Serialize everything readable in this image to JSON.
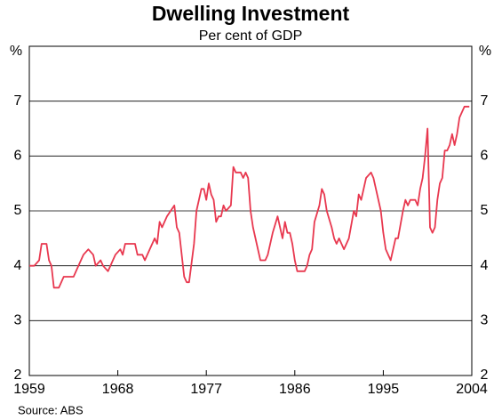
{
  "chart_data": {
    "type": "line",
    "title": "Dwelling Investment",
    "subtitle": "Per cent of GDP",
    "y_label": "%",
    "y2_label": "%",
    "source": "Source: ABS",
    "xlim": [
      1959,
      2004
    ],
    "xticks": [
      1959,
      1968,
      1977,
      1986,
      1995,
      2004
    ],
    "ylim": [
      2,
      8
    ],
    "yticks": [
      2,
      3,
      4,
      5,
      6,
      7
    ],
    "grid": true,
    "mirror_y_axis": true,
    "x": [
      1959.0,
      1959.5,
      1960.0,
      1960.25,
      1960.75,
      1961.0,
      1961.25,
      1961.5,
      1962.0,
      1962.5,
      1963.5,
      1964.0,
      1964.5,
      1965.0,
      1965.5,
      1965.75,
      1966.25,
      1966.5,
      1967.0,
      1967.5,
      1967.75,
      1968.25,
      1968.5,
      1968.75,
      1969.75,
      1970.0,
      1970.5,
      1970.75,
      1971.25,
      1971.75,
      1972.0,
      1972.25,
      1972.5,
      1973.0,
      1973.75,
      1974.0,
      1974.25,
      1974.75,
      1975.0,
      1975.25,
      1975.75,
      1976.0,
      1976.5,
      1976.75,
      1977.0,
      1977.25,
      1977.5,
      1977.75,
      1978.0,
      1978.25,
      1978.5,
      1978.75,
      1979.0,
      1979.5,
      1979.75,
      1980.0,
      1980.5,
      1980.75,
      1981.0,
      1981.25,
      1981.5,
      1981.75,
      1982.5,
      1983.0,
      1983.25,
      1983.75,
      1984.25,
      1984.5,
      1984.75,
      1985.0,
      1985.25,
      1985.5,
      1985.75,
      1986.0,
      1986.25,
      1987.0,
      1987.25,
      1987.5,
      1987.75,
      1988.0,
      1988.5,
      1988.75,
      1989.0,
      1989.25,
      1989.75,
      1990.0,
      1990.25,
      1990.5,
      1990.75,
      1991.0,
      1991.5,
      1992.0,
      1992.25,
      1992.5,
      1992.75,
      1993.25,
      1993.75,
      1994.0,
      1994.25,
      1994.75,
      1995.0,
      1995.25,
      1995.5,
      1995.75,
      1996.25,
      1996.5,
      1997.0,
      1997.25,
      1997.5,
      1997.75,
      1998.25,
      1998.5,
      1998.75,
      1999.0,
      1999.25,
      1999.5,
      1999.75,
      2000.0,
      2000.25,
      2000.5,
      2000.75,
      2001.0,
      2001.25,
      2001.5,
      2001.75,
      2002.0,
      2002.25,
      2002.5,
      2002.75,
      2003.0,
      2003.25,
      2003.75
    ],
    "series": [
      {
        "name": "Dwelling investment",
        "color": "#e8384f",
        "values": [
          4.0,
          4.0,
          4.1,
          4.4,
          4.4,
          4.1,
          4.0,
          3.6,
          3.6,
          3.8,
          3.8,
          4.0,
          4.2,
          4.3,
          4.2,
          4.0,
          4.1,
          4.0,
          3.9,
          4.1,
          4.2,
          4.3,
          4.2,
          4.4,
          4.4,
          4.2,
          4.2,
          4.1,
          4.3,
          4.5,
          4.4,
          4.8,
          4.7,
          4.9,
          5.1,
          4.7,
          4.6,
          3.8,
          3.7,
          3.7,
          4.4,
          5.0,
          5.4,
          5.4,
          5.2,
          5.5,
          5.3,
          5.2,
          4.8,
          4.9,
          4.9,
          5.1,
          5.0,
          5.1,
          5.8,
          5.7,
          5.7,
          5.6,
          5.7,
          5.6,
          5.0,
          4.7,
          4.1,
          4.1,
          4.2,
          4.6,
          4.9,
          4.7,
          4.5,
          4.8,
          4.6,
          4.6,
          4.4,
          4.1,
          3.9,
          3.9,
          4.0,
          4.2,
          4.3,
          4.8,
          5.1,
          5.4,
          5.3,
          5.0,
          4.7,
          4.5,
          4.4,
          4.5,
          4.4,
          4.3,
          4.5,
          5.0,
          4.9,
          5.3,
          5.2,
          5.6,
          5.7,
          5.6,
          5.4,
          5.0,
          4.6,
          4.3,
          4.2,
          4.1,
          4.5,
          4.5,
          5.0,
          5.2,
          5.1,
          5.2,
          5.2,
          5.1,
          5.4,
          5.6,
          6.0,
          6.5,
          4.7,
          4.6,
          4.7,
          5.2,
          5.5,
          5.6,
          6.1,
          6.1,
          6.2,
          6.4,
          6.2,
          6.4,
          6.7,
          6.8,
          6.9,
          6.9
        ]
      }
    ]
  }
}
